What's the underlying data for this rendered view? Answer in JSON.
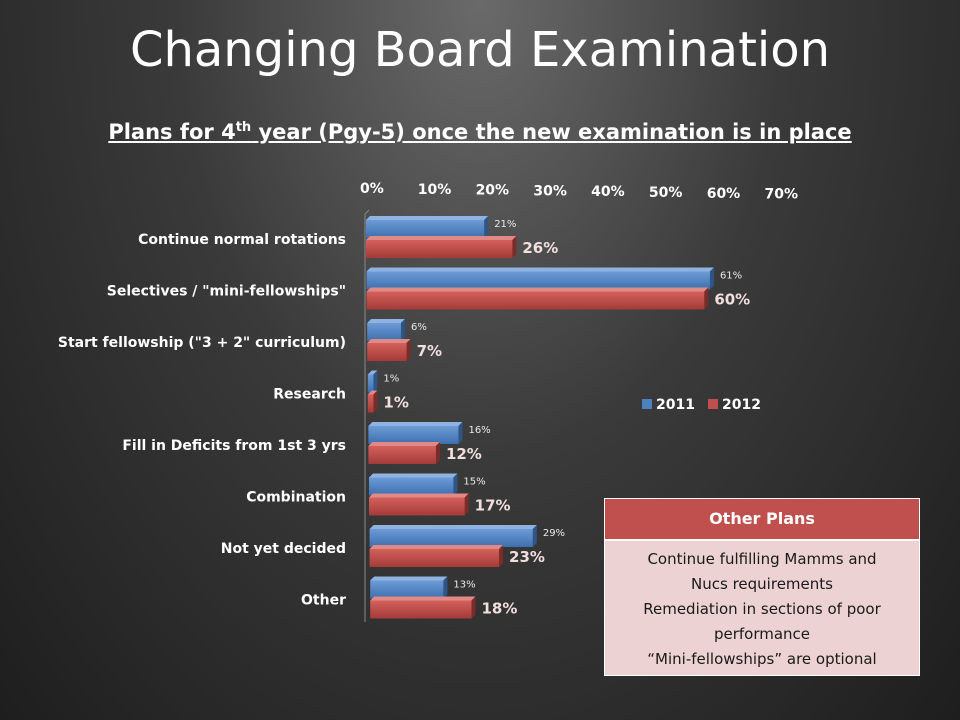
{
  "slide": {
    "title": "Changing Board Examination",
    "subtitle_pre": "Plans for 4",
    "subtitle_sup": "th",
    "subtitle_post": " year (Pgy-5) once the new examination is in place"
  },
  "chart_data": {
    "type": "bar",
    "orientation": "horizontal",
    "categories": [
      "Continue normal rotations",
      "Selectives / \"mini-fellowships\"",
      "Start fellowship (\"3 + 2\" curriculum)",
      "Research",
      "Fill in Deficits from 1st 3 yrs",
      "Combination",
      "Not yet decided",
      "Other"
    ],
    "series": [
      {
        "name": "2011",
        "values": [
          21,
          61,
          6,
          1,
          16,
          15,
          29,
          13
        ],
        "labels": [
          "21%",
          "61%",
          "6%",
          "1%",
          "16%",
          "15%",
          "29%",
          "13%"
        ],
        "color": "#4f81bd"
      },
      {
        "name": "2012",
        "values": [
          26,
          60,
          7,
          1,
          12,
          17,
          23,
          18
        ],
        "labels": [
          "26%",
          "60%",
          "7%",
          "1%",
          "12%",
          "17%",
          "23%",
          "18%"
        ],
        "color": "#c0504d"
      }
    ],
    "xlim": [
      0,
      70
    ],
    "xticks": [
      "0%",
      "10%",
      "20%",
      "30%",
      "40%",
      "50%",
      "60%",
      "70%"
    ],
    "axis_position": "top",
    "legend_position": "right",
    "grid": false
  },
  "other_plans": {
    "header": "Other Plans",
    "lines": [
      "Continue fulfilling Mamms and",
      "Nucs requirements",
      "Remediation in sections of poor",
      "performance",
      "“Mini-fellowships” are optional"
    ]
  }
}
